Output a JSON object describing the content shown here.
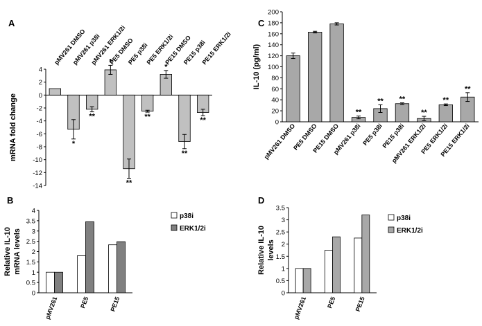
{
  "chart_data": [
    {
      "panel": "A",
      "type": "bar",
      "ylabel": "mRNA  fold change",
      "categories": [
        "pMV261 DMSO",
        "pMV261 p38i",
        "pMV261 ERK1/2i",
        "PE5 DMSO",
        "PE5 p38i",
        "PE5 ERK1/2i",
        "PE15 DMSO",
        "PE15 p38i",
        "PE15 ERK1/2i"
      ],
      "values": [
        1.0,
        -5.3,
        -2.2,
        3.9,
        -11.4,
        -2.5,
        3.2,
        -7.2,
        -2.7
      ],
      "errors": [
        0,
        1.5,
        0.4,
        0.7,
        1.5,
        0.15,
        0.6,
        1.1,
        0.5
      ],
      "significance": [
        "",
        "*",
        "**",
        "*",
        "**",
        "**",
        "*",
        "**",
        "**"
      ],
      "ylim": [
        -14,
        4
      ],
      "yticks": [
        4,
        2,
        0,
        -2,
        -4,
        -6,
        -8,
        -10,
        -12,
        -14
      ],
      "bar_color": "#c0c0c0"
    },
    {
      "panel": "C",
      "type": "bar",
      "ylabel": "IL-10 (pg/ml)",
      "categories": [
        "pMV261 DMSO",
        "PE5 DMSO",
        "PE15 DMSO",
        "pMV261 p38i",
        "PE5 p38i",
        "PE15 p38i",
        "pMV261 ERK1/2i",
        "PE5 ERK1/2i",
        "PE15 ERK1/2i"
      ],
      "values": [
        120,
        163,
        178,
        8,
        24,
        33,
        6,
        31,
        45
      ],
      "errors": [
        5,
        1.5,
        2,
        2.5,
        7,
        1.5,
        4,
        1.5,
        8
      ],
      "significance": [
        "",
        "",
        "",
        "**",
        "**",
        "**",
        "**",
        "**",
        "**"
      ],
      "ylim": [
        0,
        200
      ],
      "yticks": [
        0,
        20,
        40,
        60,
        80,
        100,
        120,
        140,
        160,
        180,
        200
      ],
      "bar_color": "#a8a8a8"
    },
    {
      "panel": "B",
      "type": "bar",
      "ylabel": "Relative  IL-10 mRNA  levels",
      "ylabel_lines": [
        "Relative  IL-10",
        "mRNA  levels"
      ],
      "categories": [
        "pMV261",
        "PE5",
        "PE15"
      ],
      "series": [
        {
          "name": "p38i",
          "values": [
            1.0,
            1.8,
            2.33
          ],
          "color": "#ffffff"
        },
        {
          "name": "ERK1/2i",
          "values": [
            1.0,
            3.45,
            2.48
          ],
          "color": "#808080"
        }
      ],
      "ylim": [
        0,
        4
      ],
      "yticks": [
        0,
        0.5,
        1,
        1.5,
        2,
        2.5,
        3,
        3.5,
        4
      ],
      "ytick_labels": [
        "0",
        "0.5",
        "1",
        "1.5",
        "2",
        "2.5",
        "3",
        "3.5",
        "4"
      ]
    },
    {
      "panel": "D",
      "type": "bar",
      "ylabel": "Relative  IL-10 levels",
      "ylabel_lines": [
        "Relative  IL-10",
        "levels"
      ],
      "categories": [
        "pMV261",
        "PE5",
        "PE15"
      ],
      "series": [
        {
          "name": "p38i",
          "values": [
            1.0,
            1.75,
            2.25
          ],
          "color": "#ffffff"
        },
        {
          "name": "ERK1/2i",
          "values": [
            1.0,
            2.3,
            3.2
          ],
          "color": "#a8a8a8"
        }
      ],
      "ylim": [
        0,
        3.5
      ],
      "yticks": [
        0,
        0.5,
        1,
        1.5,
        2,
        2.5,
        3,
        3.5
      ],
      "ytick_labels": [
        "0",
        "0.5",
        "1",
        "1.5",
        "2",
        "2.5",
        "3",
        "3.5"
      ]
    }
  ]
}
